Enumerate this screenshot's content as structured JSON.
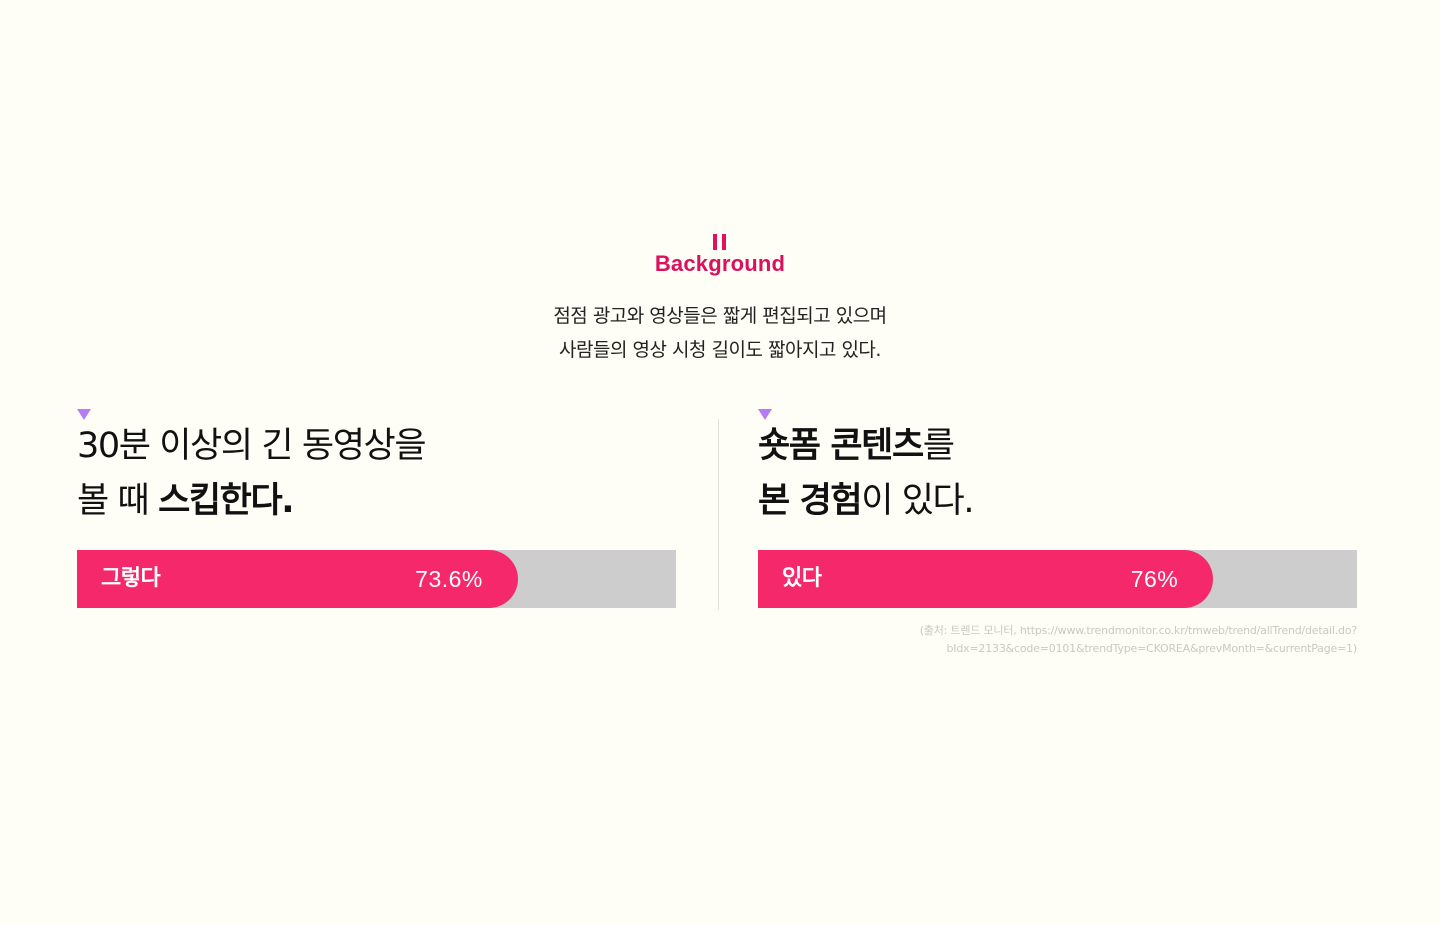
{
  "section": {
    "title": "Background",
    "intro_lines": [
      "점점 광고와 영상들은 짧게 편집되고 있으며",
      "사람들의 영상 시청 길이도 짧아지고 있다."
    ],
    "accent_color": "#d8125e"
  },
  "stats": [
    {
      "line1_plain": "30분 이상의 긴 동영상을",
      "line2_plain": "볼 때 ",
      "line2_bold": "스킵한다.",
      "bar_label": "그렇다",
      "value_text": "73.6%",
      "value": 73.6
    },
    {
      "line1_bold": "숏폼 콘텐츠",
      "line1_plain": "를",
      "line2_bold": "본 경험",
      "line2_plain": "이 있다.",
      "bar_label": "있다",
      "value_text": "76%",
      "value": 76
    }
  ],
  "colors": {
    "bar_fill": "#f4286b",
    "bar_track": "#cdcdcd",
    "triangle": "#b77cf5",
    "background": "#fefef6"
  },
  "source": {
    "lines": [
      "(출처: 트렌드 모니터, https://www.trendmonitor.co.kr/tmweb/trend/allTrend/detail.do?",
      "bIdx=2133&code=0101&trendType=CKOREA&prevMonth=&currentPage=1)"
    ]
  }
}
